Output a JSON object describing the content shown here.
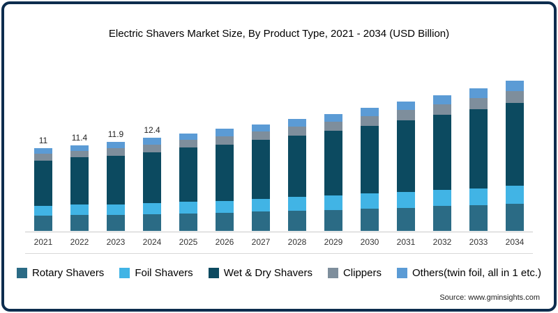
{
  "source": "Source: www.gminsights.com",
  "chart_data": {
    "type": "bar",
    "stacked": true,
    "title": "Electric Shavers Market Size, By Product Type, 2021 - 2034 (USD Billion)",
    "categories": [
      "2021",
      "2022",
      "2023",
      "2024",
      "2025",
      "2026",
      "2027",
      "2028",
      "2029",
      "2030",
      "2031",
      "2032",
      "2033",
      "2034"
    ],
    "series": [
      {
        "name": "Rotary Shavers",
        "color": "#2b6b85",
        "values": [
          2.0,
          2.1,
          2.1,
          2.2,
          2.3,
          2.4,
          2.6,
          2.7,
          2.8,
          3.0,
          3.1,
          3.3,
          3.4,
          3.6
        ]
      },
      {
        "name": "Foil Shavers",
        "color": "#41b4e5",
        "values": [
          1.3,
          1.4,
          1.4,
          1.5,
          1.6,
          1.6,
          1.7,
          1.8,
          1.9,
          2.0,
          2.1,
          2.2,
          2.3,
          2.4
        ]
      },
      {
        "name": "Wet & Dry Shavers",
        "color": "#0c4a60",
        "values": [
          6.1,
          6.3,
          6.5,
          6.8,
          7.2,
          7.5,
          7.8,
          8.2,
          8.6,
          9.0,
          9.5,
          10.0,
          10.5,
          11.0
        ]
      },
      {
        "name": "Clippers",
        "color": "#7e8e9c",
        "values": [
          0.9,
          0.9,
          1.0,
          1.0,
          1.0,
          1.1,
          1.1,
          1.2,
          1.2,
          1.3,
          1.4,
          1.4,
          1.5,
          1.6
        ]
      },
      {
        "name": "Others(twin foil, all in 1 etc.)",
        "color": "#5b9bd5",
        "values": [
          0.7,
          0.7,
          0.9,
          0.9,
          0.9,
          1.0,
          1.0,
          1.0,
          1.1,
          1.1,
          1.1,
          1.2,
          1.3,
          1.4
        ]
      }
    ],
    "totals": [
      11,
      11.4,
      11.9,
      12.4,
      13.0,
      13.6,
      14.2,
      14.9,
      15.6,
      16.4,
      17.2,
      18.1,
      19.0,
      20.0
    ],
    "bar_labels": [
      "11",
      "11.4",
      "11.9",
      "12.4"
    ],
    "ylim": [
      0,
      20
    ],
    "grid": false,
    "legend_position": "bottom"
  }
}
